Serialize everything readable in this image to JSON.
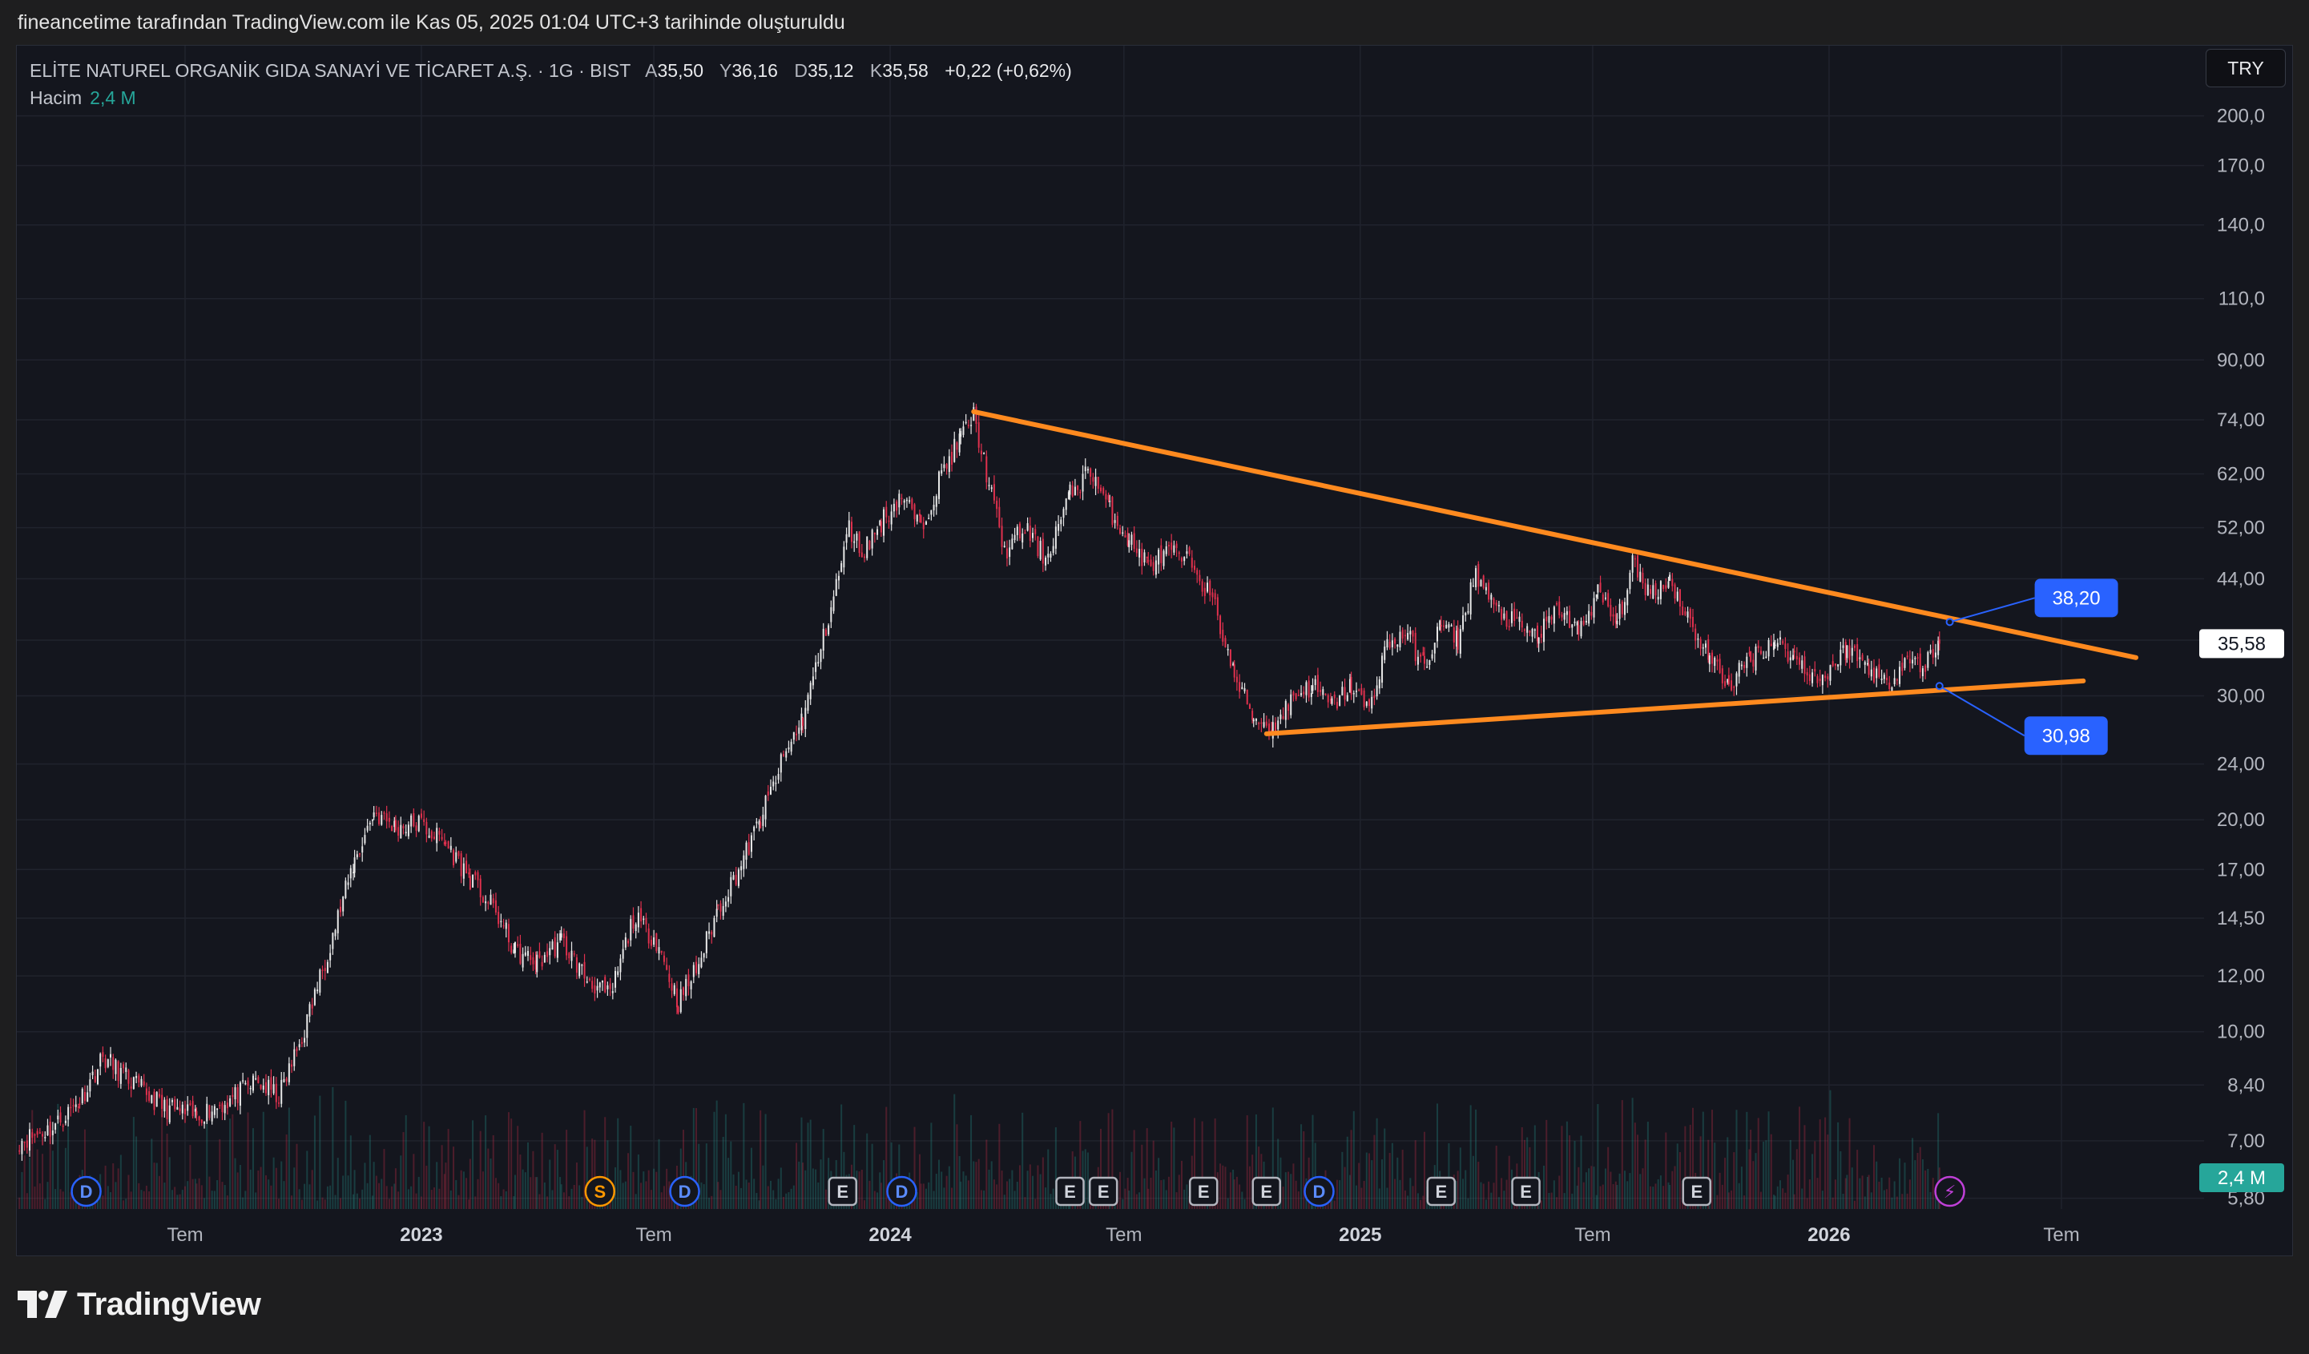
{
  "attribution": "fineancetime tarafından TradingView.com ile Kas 05, 2025 01:04 UTC+3 tarihinde oluşturuldu",
  "legend": {
    "symbol": "ELİTE NATUREL ORGANİK GIDA SANAYİ VE TİCARET A.Ş. · 1G · BIST",
    "open_label": "A",
    "open": "35,50",
    "high_label": "Y",
    "high": "36,16",
    "low_label": "D",
    "low": "35,12",
    "close_label": "K",
    "close": "35,58",
    "change": "+0,22 (+0,62%)",
    "volume_label": "Hacim",
    "volume": "2,4 M"
  },
  "currency_button": "TRY",
  "brand": "TradingView",
  "colors": {
    "background": "#14161e",
    "up": "#e8e8e8",
    "down": "#e0314e",
    "trendline": "#ff8a1f",
    "price_tag": "#2962ff",
    "volume_label": "#26a69a"
  },
  "chart_data": {
    "type": "candlestick",
    "y_scale": "log",
    "y_ticks": [
      "200,0",
      "170,0",
      "140,0",
      "110,0",
      "90,00",
      "74,00",
      "62,00",
      "52,00",
      "44,00",
      "36,00",
      "30,00",
      "24,00",
      "20,00",
      "17,00",
      "14,50",
      "12,00",
      "10,00",
      "8,40",
      "7,00",
      "5,80"
    ],
    "y_tick_values": [
      200,
      170,
      140,
      110,
      90,
      74,
      62,
      52,
      44,
      36,
      30,
      24,
      20,
      17,
      14.5,
      12,
      10,
      8.4,
      7,
      5.8
    ],
    "x_ticks": [
      {
        "label": "Tem",
        "date": "2022-07-01",
        "bold": false
      },
      {
        "label": "2023",
        "date": "2023-01-01",
        "bold": true
      },
      {
        "label": "Tem",
        "date": "2023-07-01",
        "bold": false
      },
      {
        "label": "2024",
        "date": "2024-01-01",
        "bold": true
      },
      {
        "label": "Tem",
        "date": "2024-07-01",
        "bold": false
      },
      {
        "label": "2025",
        "date": "2025-01-01",
        "bold": true
      },
      {
        "label": "Tem",
        "date": "2025-07-01",
        "bold": false
      },
      {
        "label": "2026",
        "date": "2026-01-01",
        "bold": true
      },
      {
        "label": "Tem",
        "date": "2026-07-01",
        "bold": false
      }
    ],
    "x_range": [
      "2022-02-20",
      "2026-10-20"
    ],
    "y_range": [
      5.6,
      215
    ],
    "last_price": "35,58",
    "last_price_value": 35.58,
    "last_volume": "2,4 M",
    "price_path": [
      [
        "2022-02-22",
        7.0
      ],
      [
        "2022-03-20",
        7.3
      ],
      [
        "2022-04-10",
        8.0
      ],
      [
        "2022-04-28",
        9.2
      ],
      [
        "2022-05-20",
        8.5
      ],
      [
        "2022-06-15",
        7.8
      ],
      [
        "2022-07-10",
        7.6
      ],
      [
        "2022-08-05",
        8.0
      ],
      [
        "2022-08-25",
        8.5
      ],
      [
        "2022-09-12",
        8.1
      ],
      [
        "2022-09-30",
        9.8
      ],
      [
        "2022-10-20",
        13.0
      ],
      [
        "2022-11-10",
        17.5
      ],
      [
        "2022-11-25",
        20.5
      ],
      [
        "2022-12-12",
        19.5
      ],
      [
        "2022-12-30",
        19.8
      ],
      [
        "2023-01-20",
        18.5
      ],
      [
        "2023-02-08",
        16.5
      ],
      [
        "2023-02-28",
        14.8
      ],
      [
        "2023-03-15",
        13.0
      ],
      [
        "2023-04-01",
        12.5
      ],
      [
        "2023-04-20",
        13.5
      ],
      [
        "2023-05-08",
        12.0
      ],
      [
        "2023-05-28",
        11.2
      ],
      [
        "2023-06-15",
        14.5
      ],
      [
        "2023-07-03",
        13.5
      ],
      [
        "2023-07-20",
        11.0
      ],
      [
        "2023-08-05",
        12.5
      ],
      [
        "2023-08-20",
        15.0
      ],
      [
        "2023-09-05",
        17.0
      ],
      [
        "2023-09-22",
        20.0
      ],
      [
        "2023-10-08",
        24.0
      ],
      [
        "2023-10-25",
        28.0
      ],
      [
        "2023-11-08",
        35.0
      ],
      [
        "2023-11-20",
        43.0
      ],
      [
        "2023-11-30",
        52.0
      ],
      [
        "2023-12-10",
        48.0
      ],
      [
        "2023-12-25",
        53.0
      ],
      [
        "2024-01-10",
        58.0
      ],
      [
        "2024-01-25",
        52.0
      ],
      [
        "2024-02-10",
        62.0
      ],
      [
        "2024-02-25",
        70.0
      ],
      [
        "2024-03-06",
        75.0
      ],
      [
        "2024-03-18",
        60.0
      ],
      [
        "2024-03-30",
        48.0
      ],
      [
        "2024-04-15",
        52.0
      ],
      [
        "2024-05-01",
        47.0
      ],
      [
        "2024-05-20",
        58.0
      ],
      [
        "2024-06-05",
        63.0
      ],
      [
        "2024-06-20",
        55.0
      ],
      [
        "2024-07-05",
        50.0
      ],
      [
        "2024-07-20",
        46.0
      ],
      [
        "2024-08-05",
        48.0
      ],
      [
        "2024-08-25",
        46.0
      ],
      [
        "2024-09-10",
        40.0
      ],
      [
        "2024-09-25",
        32.0
      ],
      [
        "2024-10-10",
        28.0
      ],
      [
        "2024-10-25",
        27.0
      ],
      [
        "2024-11-10",
        30.0
      ],
      [
        "2024-11-25",
        31.0
      ],
      [
        "2024-12-10",
        29.0
      ],
      [
        "2024-12-25",
        31.0
      ],
      [
        "2025-01-08",
        28.5
      ],
      [
        "2025-01-20",
        35.0
      ],
      [
        "2025-02-05",
        37.0
      ],
      [
        "2025-02-20",
        33.0
      ],
      [
        "2025-03-05",
        38.0
      ],
      [
        "2025-03-18",
        36.0
      ],
      [
        "2025-04-01",
        45.0
      ],
      [
        "2025-04-15",
        40.0
      ],
      [
        "2025-05-01",
        38.0
      ],
      [
        "2025-05-20",
        36.5
      ],
      [
        "2025-06-05",
        40.0
      ],
      [
        "2025-06-20",
        37.0
      ],
      [
        "2025-07-05",
        42.0
      ],
      [
        "2025-07-20",
        38.0
      ],
      [
        "2025-08-01",
        46.0
      ],
      [
        "2025-08-15",
        42.0
      ],
      [
        "2025-08-30",
        44.0
      ],
      [
        "2025-09-15",
        38.0
      ],
      [
        "2025-09-30",
        34.0
      ],
      [
        "2025-10-15",
        31.0
      ],
      [
        "2025-11-01",
        34.0
      ],
      [
        "2025-11-20",
        36.0
      ],
      [
        "2025-12-05",
        34.0
      ],
      [
        "2025-12-25",
        31.5
      ],
      [
        "2026-01-15",
        35.0
      ],
      [
        "2026-02-01",
        33.0
      ],
      [
        "2026-02-15",
        31.0
      ],
      [
        "2026-03-01",
        34.0
      ],
      [
        "2026-03-15",
        33.0
      ],
      [
        "2026-03-28",
        35.58
      ]
    ],
    "trendlines": [
      {
        "name": "upper",
        "from": [
          "2024-03-06",
          76.0
        ],
        "to": [
          "2026-08-28",
          34.0
        ]
      },
      {
        "name": "lower",
        "from": [
          "2024-10-20",
          26.5
        ],
        "to": [
          "2026-07-18",
          31.5
        ]
      }
    ],
    "price_tags": [
      {
        "text": "38,20",
        "value": 38.2,
        "anchor_date": "2026-04-05"
      },
      {
        "text": "30,98",
        "value": 30.98,
        "anchor_date": "2026-03-28"
      }
    ],
    "event_markers": [
      {
        "letter": "D",
        "date": "2022-04-15",
        "kind": "dividend"
      },
      {
        "letter": "S",
        "date": "2023-05-20",
        "kind": "split"
      },
      {
        "letter": "D",
        "date": "2023-07-25",
        "kind": "dividend"
      },
      {
        "letter": "E",
        "date": "2023-11-25",
        "kind": "earnings"
      },
      {
        "letter": "D",
        "date": "2024-01-10",
        "kind": "dividend"
      },
      {
        "letter": "E",
        "date": "2024-05-20",
        "kind": "earnings"
      },
      {
        "letter": "E",
        "date": "2024-06-15",
        "kind": "earnings"
      },
      {
        "letter": "E",
        "date": "2024-09-01",
        "kind": "earnings"
      },
      {
        "letter": "E",
        "date": "2024-10-20",
        "kind": "earnings"
      },
      {
        "letter": "D",
        "date": "2024-11-30",
        "kind": "dividend"
      },
      {
        "letter": "E",
        "date": "2025-03-05",
        "kind": "earnings"
      },
      {
        "letter": "E",
        "date": "2025-05-10",
        "kind": "earnings"
      },
      {
        "letter": "E",
        "date": "2025-09-20",
        "kind": "earnings"
      },
      {
        "letter": "⚡",
        "date": "2026-04-05",
        "kind": "lightning"
      }
    ]
  }
}
